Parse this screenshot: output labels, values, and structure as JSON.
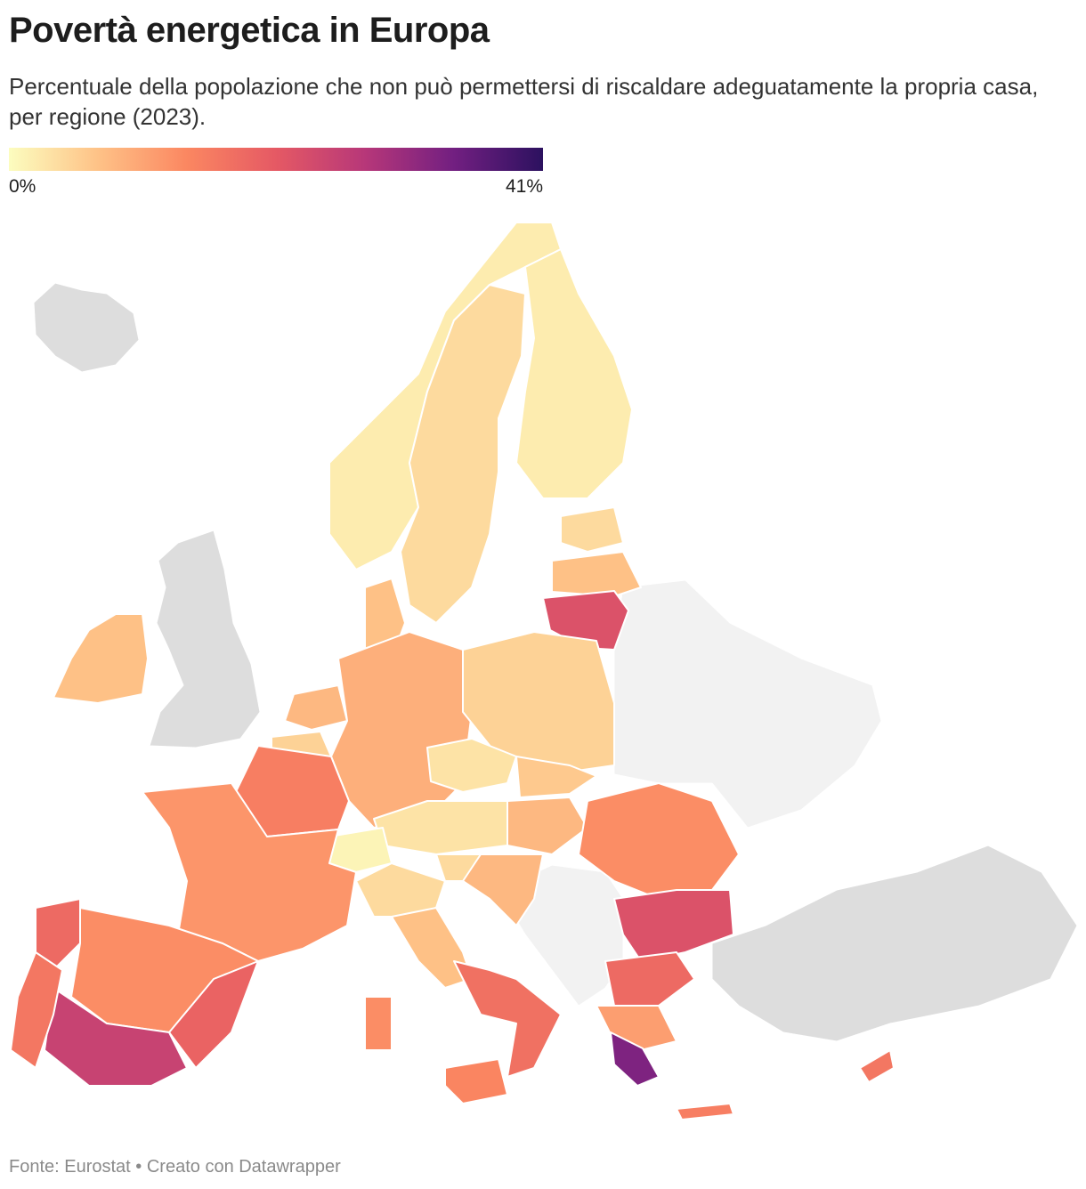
{
  "title": "Povertà energetica in Europa",
  "subtitle": "Percentuale della popolazione che non può permettersi di riscaldare adeguatamente la propria casa, per regione (2023).",
  "legend": {
    "min_label": "0%",
    "max_label": "41%",
    "min_value": 0,
    "max_value": 41,
    "colors": [
      "#fcfdbf",
      "#fec287",
      "#fb8761",
      "#e55964",
      "#b73779",
      "#721f81",
      "#2c115f"
    ]
  },
  "no_data_colors": {
    "outside_eu": "#dddddd",
    "non_eu_light": "#f2f2f2"
  },
  "regions": [
    {
      "name": "Islanda",
      "value": null
    },
    {
      "name": "Regno Unito",
      "value": null
    },
    {
      "name": "Irlanda",
      "value": 7
    },
    {
      "name": "Norvegia",
      "value": 2
    },
    {
      "name": "Svezia",
      "value": 4
    },
    {
      "name": "Finlandia",
      "value": 2
    },
    {
      "name": "Estonia",
      "value": 4
    },
    {
      "name": "Lettonia",
      "value": 7
    },
    {
      "name": "Lituania",
      "value": 22
    },
    {
      "name": "Danimarca",
      "value": 7
    },
    {
      "name": "Paesi Bassi",
      "value": 8
    },
    {
      "name": "Belgio",
      "value": 5
    },
    {
      "name": "Lussemburgo",
      "value": 2
    },
    {
      "name": "Germania",
      "value": 9
    },
    {
      "name": "Polonia",
      "value": 5
    },
    {
      "name": "Cechia",
      "value": 3
    },
    {
      "name": "Slovacchia",
      "value": 6
    },
    {
      "name": "Ungheria",
      "value": 8
    },
    {
      "name": "Austria",
      "value": 3
    },
    {
      "name": "Svizzera",
      "value": 1
    },
    {
      "name": "Francia",
      "value": 12
    },
    {
      "name": "Francia nord",
      "value": 15
    },
    {
      "name": "Slovenia",
      "value": 4
    },
    {
      "name": "Croazia",
      "value": 8
    },
    {
      "name": "Romania",
      "value": 13
    },
    {
      "name": "Bulgaria",
      "value": 22
    },
    {
      "name": "Italia nord",
      "value": 4
    },
    {
      "name": "Italia centro",
      "value": 7
    },
    {
      "name": "Italia sud",
      "value": 17
    },
    {
      "name": "Sicilia",
      "value": 14
    },
    {
      "name": "Sardegna",
      "value": 13
    },
    {
      "name": "Spagna nord",
      "value": 13
    },
    {
      "name": "Galizia",
      "value": 18
    },
    {
      "name": "Spagna levante",
      "value": 19
    },
    {
      "name": "Spagna sud",
      "value": 25
    },
    {
      "name": "Portogallo",
      "value": 16
    },
    {
      "name": "Grecia nord",
      "value": 18
    },
    {
      "name": "Grecia centro",
      "value": 11
    },
    {
      "name": "Grecia ovest",
      "value": 33
    },
    {
      "name": "Creta",
      "value": 15
    },
    {
      "name": "Cipro",
      "value": 16
    },
    {
      "name": "Balcani occidentali",
      "value": null
    },
    {
      "name": "Turchia",
      "value": null
    },
    {
      "name": "Ucraina/Bielorussia",
      "value": null
    }
  ],
  "source": "Fonte: Eurostat • Creato con Datawrapper"
}
